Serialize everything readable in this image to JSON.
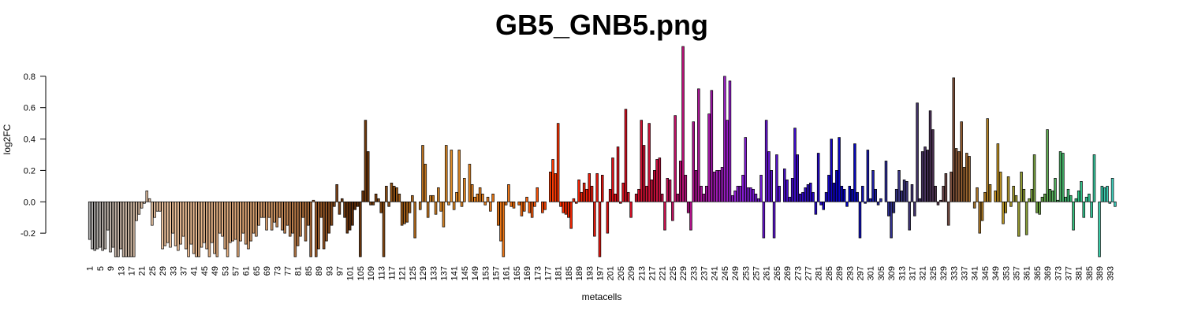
{
  "chart_data": {
    "type": "bar",
    "title": "GB5_GNB5.png",
    "xlabel": "metacells",
    "ylabel": "log2FC",
    "categories": [
      "1",
      null,
      null,
      null,
      "5",
      null,
      null,
      null,
      "9",
      null,
      null,
      null,
      "13",
      null,
      null,
      null,
      "17",
      null,
      null,
      null,
      "21",
      null,
      null,
      null,
      "25",
      null,
      null,
      null,
      "29",
      null,
      null,
      null,
      "33",
      null,
      null,
      null,
      "37",
      null,
      null,
      null,
      "41",
      null,
      null,
      null,
      "45",
      null,
      null,
      null,
      "49",
      null,
      null,
      null,
      "53",
      null,
      null,
      null,
      "57",
      null,
      null,
      null,
      "61",
      null,
      null,
      null,
      "65",
      null,
      null,
      null,
      "69",
      null,
      null,
      null,
      "73",
      null,
      null,
      null,
      "77",
      null,
      null,
      null,
      "81",
      null,
      null,
      null,
      "85",
      null,
      null,
      null,
      "89",
      null,
      null,
      null,
      "93",
      null,
      null,
      null,
      "97",
      null,
      null,
      null,
      "101",
      null,
      null,
      null,
      "105",
      null,
      null,
      null,
      "109",
      null,
      null,
      null,
      "113",
      null,
      null,
      null,
      "117",
      null,
      null,
      null,
      "121",
      null,
      null,
      null,
      "125",
      null,
      null,
      null,
      "129",
      null,
      null,
      null,
      "133",
      null,
      null,
      null,
      "137",
      null,
      null,
      null,
      "141",
      null,
      null,
      null,
      "145",
      null,
      null,
      null,
      "149",
      null,
      null,
      null,
      "153",
      null,
      null,
      null,
      "157",
      null,
      null,
      null,
      "161",
      null,
      null,
      null,
      "165",
      null,
      null,
      null,
      "169",
      null,
      null,
      null,
      "173",
      null,
      null,
      null,
      "177",
      null,
      null,
      null,
      "181",
      null,
      null,
      null,
      "185",
      null,
      null,
      null,
      "189",
      null,
      null,
      null,
      "193",
      null,
      null,
      null,
      "197",
      null,
      null,
      null,
      "201",
      null,
      null,
      null,
      "205",
      null,
      null,
      null,
      "209",
      null,
      null,
      null,
      "213",
      null,
      null,
      null,
      "217",
      null,
      null,
      null,
      "221",
      null,
      null,
      null,
      "225",
      null,
      null,
      null,
      "229",
      null,
      null,
      null,
      "233",
      null,
      null,
      null,
      "237",
      null,
      null,
      null,
      "241",
      null,
      null,
      null,
      "245",
      null,
      null,
      null,
      "249",
      null,
      null,
      null,
      "253",
      null,
      null,
      null,
      "257",
      null,
      null,
      null,
      "261",
      null,
      null,
      null,
      "265",
      null,
      null,
      null,
      "269",
      null,
      null,
      null,
      "273",
      null,
      null,
      null,
      "277",
      null,
      null,
      null,
      "281",
      null,
      null,
      null,
      "285",
      null,
      null,
      null,
      "289",
      null,
      null,
      null,
      "293",
      null,
      null,
      null,
      "297",
      null,
      null,
      null,
      "301",
      null,
      null,
      null,
      "305",
      null,
      null,
      null,
      "309",
      null,
      null,
      null,
      "313",
      null,
      null,
      null,
      "317",
      null,
      null,
      null,
      "321",
      null,
      null,
      null,
      "325",
      null,
      null,
      null,
      "329",
      null,
      null,
      null,
      "333",
      null,
      null,
      null,
      "337",
      null,
      null,
      null,
      "341",
      null,
      null,
      null,
      "345",
      null,
      null,
      null,
      "349",
      null,
      null,
      null,
      "353",
      null,
      null,
      null,
      "357",
      null,
      null,
      null,
      "361",
      null,
      null,
      null,
      "365",
      null,
      null,
      null,
      "369",
      null,
      null,
      null,
      "373",
      null,
      null,
      null,
      "377",
      null,
      null,
      null,
      "381",
      null,
      null,
      null,
      "385",
      null,
      null,
      null,
      "389",
      null,
      null,
      null,
      "393",
      null,
      null
    ],
    "values": [
      -0.24,
      -0.3,
      -0.31,
      -0.3,
      -0.29,
      -0.31,
      -0.3,
      -0.18,
      -0.32,
      -0.29,
      -0.35,
      -0.35,
      -0.3,
      -0.35,
      -0.35,
      -0.35,
      -0.35,
      -0.35,
      -0.12,
      -0.08,
      -0.04,
      -0.01,
      0.07,
      0.02,
      -0.15,
      -0.1,
      -0.06,
      -0.06,
      -0.3,
      -0.28,
      -0.26,
      -0.29,
      -0.2,
      -0.28,
      -0.31,
      -0.27,
      -0.22,
      -0.3,
      -0.35,
      -0.27,
      -0.33,
      -0.35,
      -0.35,
      -0.29,
      -0.26,
      -0.3,
      -0.35,
      -0.26,
      -0.33,
      -0.35,
      -0.2,
      -0.22,
      -0.3,
      -0.35,
      -0.26,
      -0.25,
      -0.24,
      -0.35,
      -0.25,
      -0.2,
      -0.27,
      -0.3,
      -0.25,
      -0.2,
      -0.22,
      -0.15,
      -0.1,
      -0.1,
      -0.18,
      -0.1,
      -0.18,
      -0.13,
      -0.16,
      -0.1,
      -0.18,
      -0.2,
      -0.15,
      -0.22,
      -0.2,
      -0.35,
      -0.28,
      -0.22,
      -0.1,
      -0.25,
      -0.15,
      -0.35,
      0.01,
      -0.35,
      -0.3,
      -0.1,
      -0.3,
      -0.25,
      -0.2,
      -0.15,
      -0.03,
      0.11,
      -0.08,
      0.02,
      -0.1,
      -0.2,
      -0.18,
      -0.15,
      -0.05,
      -0.03,
      -0.35,
      0.07,
      0.52,
      0.32,
      -0.02,
      -0.02,
      0.05,
      0.02,
      -0.07,
      -0.35,
      0.1,
      -0.03,
      0.12,
      0.1,
      0.09,
      0.05,
      -0.15,
      -0.14,
      -0.13,
      -0.07,
      0.04,
      -0.23,
      0.0,
      -0.05,
      0.36,
      0.24,
      -0.1,
      0.04,
      0.04,
      -0.08,
      0.09,
      -0.06,
      -0.16,
      0.36,
      -0.02,
      0.33,
      -0.05,
      0.06,
      0.33,
      -0.03,
      0.15,
      0.0,
      0.24,
      0.11,
      0.03,
      0.05,
      0.09,
      0.05,
      -0.02,
      0.03,
      -0.06,
      0.05,
      0.0,
      -0.15,
      -0.25,
      -0.35,
      -0.02,
      0.11,
      -0.03,
      -0.04,
      0.0,
      -0.02,
      -0.09,
      -0.06,
      0.03,
      -0.07,
      -0.1,
      -0.03,
      0.09,
      0.0,
      -0.07,
      -0.05,
      0.0,
      0.19,
      0.27,
      0.18,
      0.5,
      -0.03,
      -0.07,
      -0.08,
      -0.1,
      -0.17,
      0.02,
      -0.01,
      0.14,
      0.06,
      0.12,
      0.08,
      0.18,
      0.1,
      -0.22,
      0.18,
      -0.35,
      0.17,
      0.0,
      -0.2,
      0.08,
      0.28,
      0.05,
      0.35,
      -0.01,
      0.12,
      0.59,
      0.06,
      -0.1,
      0.0,
      0.05,
      0.08,
      0.52,
      0.36,
      0.1,
      0.5,
      0.14,
      0.2,
      0.27,
      0.28,
      0.05,
      -0.18,
      0.15,
      0.14,
      -0.12,
      0.55,
      0.05,
      0.26,
      0.99,
      0.17,
      -0.07,
      -0.18,
      0.51,
      0.2,
      0.72,
      0.1,
      0.05,
      0.1,
      0.56,
      0.71,
      0.19,
      0.2,
      0.2,
      0.22,
      0.8,
      0.52,
      0.77,
      0.04,
      0.07,
      0.1,
      0.1,
      0.17,
      0.41,
      0.09,
      0.09,
      0.08,
      0.05,
      0.02,
      0.17,
      -0.23,
      0.52,
      0.32,
      0.2,
      -0.23,
      0.3,
      0.1,
      0.0,
      0.21,
      0.14,
      0.03,
      0.15,
      0.47,
      0.3,
      0.05,
      0.06,
      0.09,
      0.11,
      0.12,
      0.06,
      -0.08,
      0.31,
      -0.02,
      -0.05,
      0.06,
      0.17,
      0.4,
      0.12,
      0.2,
      0.41,
      0.1,
      0.08,
      -0.03,
      0.1,
      0.08,
      0.37,
      0.06,
      -0.23,
      0.1,
      -0.01,
      0.33,
      0.02,
      0.2,
      0.08,
      -0.02,
      0.02,
      0.0,
      0.26,
      -0.09,
      -0.23,
      -0.07,
      0.08,
      0.2,
      0.07,
      0.14,
      0.13,
      -0.18,
      0.11,
      -0.09,
      0.63,
      0.02,
      0.32,
      0.35,
      0.33,
      0.58,
      0.46,
      0.1,
      -0.02,
      0.01,
      0.1,
      0.18,
      -0.15,
      0.19,
      0.79,
      0.34,
      0.32,
      0.51,
      0.22,
      0.31,
      0.29,
      0.0,
      -0.04,
      0.09,
      -0.2,
      -0.12,
      0.06,
      0.53,
      0.11,
      0.0,
      0.07,
      0.37,
      0.19,
      -0.14,
      -0.07,
      0.16,
      -0.03,
      0.1,
      0.04,
      -0.22,
      0.19,
      0.08,
      -0.21,
      0.02,
      0.08,
      0.3,
      -0.07,
      -0.08,
      0.03,
      0.05,
      0.46,
      0.08,
      0.07,
      0.15,
      0.01,
      0.32,
      0.31,
      0.03,
      0.08,
      0.04,
      -0.18,
      0.02,
      0.07,
      0.13,
      -0.1,
      0.03,
      0.05,
      -0.1,
      0.3,
      0.0,
      -0.35,
      0.1,
      0.09,
      0.1,
      -0.01,
      0.15,
      -0.03
    ],
    "color_stops": [
      {
        "at": 1,
        "color": "#a8a8a8"
      },
      {
        "at": 30,
        "color": "#f2c6a0"
      },
      {
        "at": 70,
        "color": "#d49a68"
      },
      {
        "at": 90,
        "color": "#9a5a28"
      },
      {
        "at": 102,
        "color": "#5e2c08"
      },
      {
        "at": 140,
        "color": "#e08c28"
      },
      {
        "at": 165,
        "color": "#f07010"
      },
      {
        "at": 182,
        "color": "#ff3000"
      },
      {
        "at": 200,
        "color": "#dd1010"
      },
      {
        "at": 220,
        "color": "#c81040"
      },
      {
        "at": 232,
        "color": "#b01088"
      },
      {
        "at": 250,
        "color": "#9020d8"
      },
      {
        "at": 268,
        "color": "#4a10c8"
      },
      {
        "at": 292,
        "color": "#0000c0"
      },
      {
        "at": 310,
        "color": "#343488"
      },
      {
        "at": 325,
        "color": "#4a3050"
      },
      {
        "at": 336,
        "color": "#905c30"
      },
      {
        "at": 350,
        "color": "#c09020"
      },
      {
        "at": 365,
        "color": "#70a040"
      },
      {
        "at": 380,
        "color": "#30c080"
      },
      {
        "at": 395,
        "color": "#40d0c0"
      }
    ],
    "ylim": [
      -0.35,
      0.99
    ],
    "yticks": [
      -0.2,
      {
        "value": 0,
        "label": "0.0"
      },
      0.2,
      0.4,
      0.6,
      0.8
    ]
  }
}
